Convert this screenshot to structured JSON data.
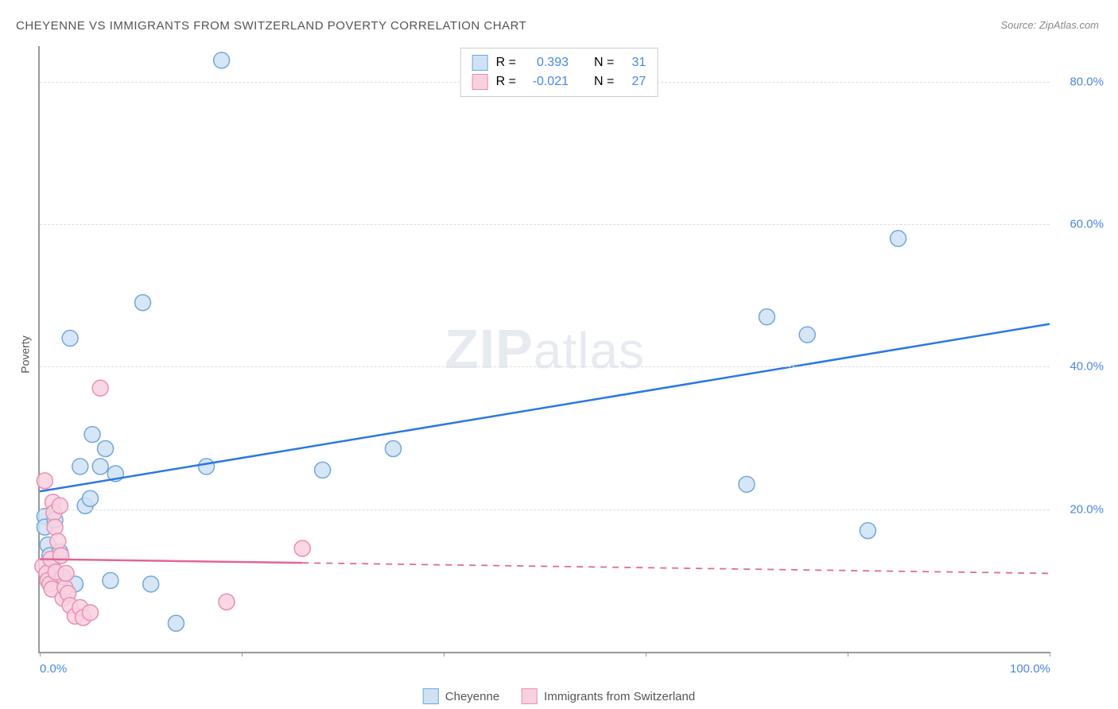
{
  "title": "CHEYENNE VS IMMIGRANTS FROM SWITZERLAND POVERTY CORRELATION CHART",
  "source": "Source: ZipAtlas.com",
  "ylabel": "Poverty",
  "watermark_a": "ZIP",
  "watermark_b": "atlas",
  "chart": {
    "type": "scatter",
    "background_color": "#ffffff",
    "grid_color": "#dddddd",
    "axis_color": "#999999",
    "xlim": [
      0,
      100
    ],
    "ylim": [
      0,
      85
    ],
    "xticks": [
      0,
      20,
      40,
      60,
      80,
      100
    ],
    "xtick_labels": [
      "0.0%",
      "",
      "",
      "",
      "",
      "100.0%"
    ],
    "yticks": [
      20,
      40,
      60,
      80
    ],
    "ytick_labels": [
      "20.0%",
      "40.0%",
      "60.0%",
      "80.0%"
    ],
    "marker_radius": 10,
    "marker_stroke_width": 1.5,
    "line_width": 2.5,
    "label_fontsize": 15,
    "tick_color": "#4a86e8",
    "series": [
      {
        "name": "Cheyenne",
        "fill": "#cfe2f3",
        "stroke": "#6fa8dc",
        "line_color": "#2b78e4",
        "R": "0.393",
        "N": "31",
        "trend": {
          "x1": 0,
          "y1": 22.5,
          "x2": 100,
          "y2": 46,
          "dashed_from": 100
        },
        "points": [
          [
            0.5,
            19
          ],
          [
            0.5,
            17.5
          ],
          [
            0.8,
            15
          ],
          [
            1,
            13.5
          ],
          [
            1.2,
            12
          ],
          [
            1.5,
            18.5
          ],
          [
            2,
            14
          ],
          [
            2.3,
            10.5
          ],
          [
            3,
            44
          ],
          [
            3.5,
            9.5
          ],
          [
            4,
            26
          ],
          [
            4.5,
            20.5
          ],
          [
            5,
            21.5
          ],
          [
            5.2,
            30.5
          ],
          [
            6,
            26
          ],
          [
            6.5,
            28.5
          ],
          [
            7,
            10
          ],
          [
            7.5,
            25
          ],
          [
            10.2,
            49
          ],
          [
            11,
            9.5
          ],
          [
            13.5,
            4
          ],
          [
            16.5,
            26
          ],
          [
            18,
            83
          ],
          [
            28,
            25.5
          ],
          [
            35,
            28.5
          ],
          [
            70,
            23.5
          ],
          [
            72,
            47
          ],
          [
            76,
            44.5
          ],
          [
            82,
            17
          ],
          [
            85,
            58
          ]
        ]
      },
      {
        "name": "Immigrants from Switzerland",
        "fill": "#f9d0df",
        "stroke": "#e890b1",
        "line_color": "#e06698",
        "R": "-0.021",
        "N": "27",
        "trend": {
          "x1": 0,
          "y1": 13,
          "x2": 100,
          "y2": 11,
          "dashed_from": 26
        },
        "points": [
          [
            0.3,
            12
          ],
          [
            0.5,
            24
          ],
          [
            0.7,
            11
          ],
          [
            0.8,
            10
          ],
          [
            1,
            9.5
          ],
          [
            1.1,
            13
          ],
          [
            1.2,
            8.8
          ],
          [
            1.3,
            21
          ],
          [
            1.4,
            19.5
          ],
          [
            1.5,
            17.5
          ],
          [
            1.6,
            11.2
          ],
          [
            1.8,
            15.5
          ],
          [
            2,
            20.5
          ],
          [
            2.1,
            13.5
          ],
          [
            2.3,
            7.5
          ],
          [
            2.5,
            9
          ],
          [
            2.6,
            11
          ],
          [
            2.8,
            8.2
          ],
          [
            3,
            6.5
          ],
          [
            3.5,
            5
          ],
          [
            4,
            6.2
          ],
          [
            4.3,
            4.8
          ],
          [
            5,
            5.5
          ],
          [
            6,
            37
          ],
          [
            18.5,
            7
          ],
          [
            26,
            14.5
          ]
        ]
      }
    ]
  },
  "legend_top": {
    "R_label": "R  =",
    "N_label": "N  ="
  },
  "legend_bottom": {
    "s1": "Cheyenne",
    "s2": "Immigrants from Switzerland"
  }
}
